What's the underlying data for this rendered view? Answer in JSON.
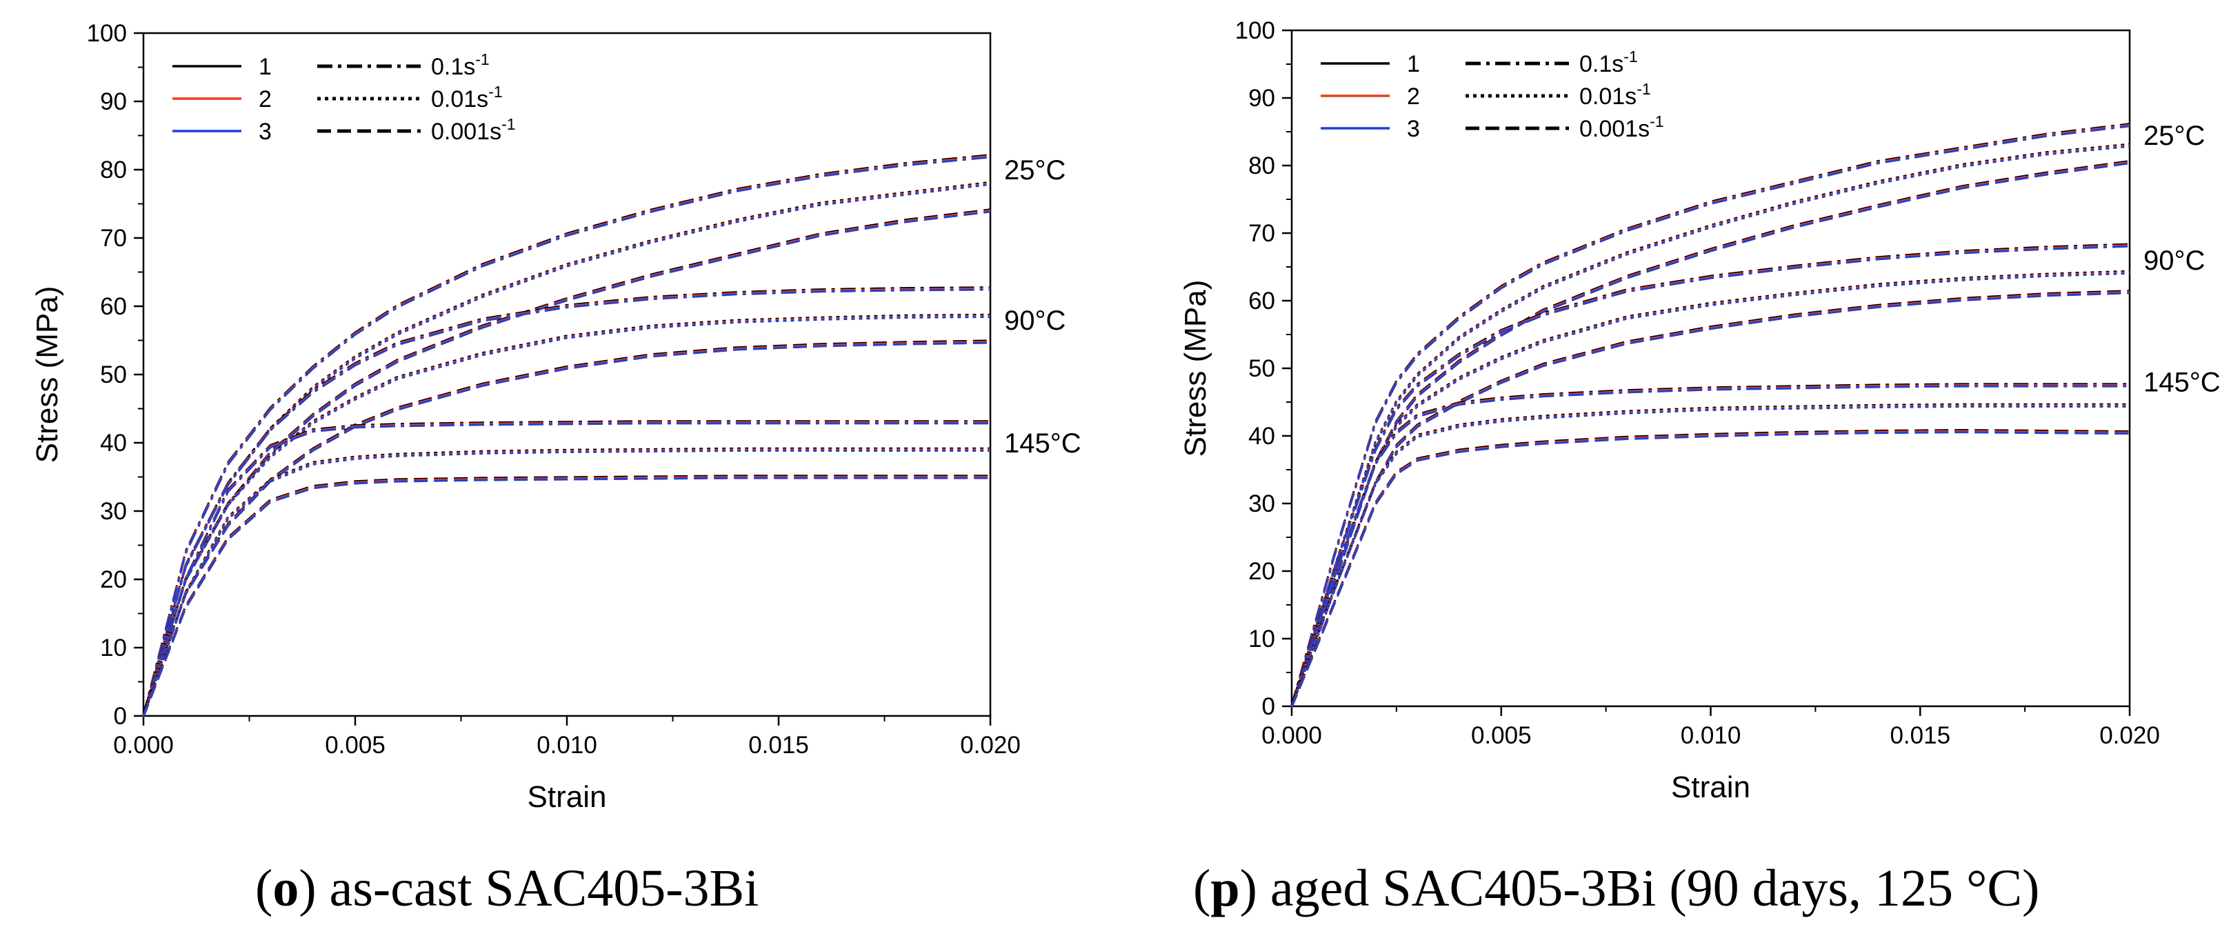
{
  "chart_data": [
    {
      "type": "line",
      "xlabel": "Strain",
      "ylabel": "Stress (MPa)",
      "xlim": [
        0,
        0.02
      ],
      "ylim": [
        0,
        100
      ],
      "xticks": [
        "0.000",
        "0.005",
        "0.010",
        "0.015",
        "0.020"
      ],
      "yticks": [
        "0",
        "10",
        "20",
        "30",
        "40",
        "50",
        "60",
        "70",
        "80",
        "90",
        "100"
      ],
      "caption_letter": "o",
      "caption_text": "as-cast SAC405-3Bi",
      "legend_position": "top-left",
      "legend_samples": [
        {
          "label": "1",
          "color": "#000000"
        },
        {
          "label": "2",
          "color": "#e8401c"
        },
        {
          "label": "3",
          "color": "#1f3fd8"
        }
      ],
      "legend_rates": [
        {
          "base": "0.1s",
          "exp": "-1",
          "style": "dashdot"
        },
        {
          "base": "0.01s",
          "exp": "-1",
          "style": "dot"
        },
        {
          "base": "0.001s",
          "exp": "-1",
          "style": "dash"
        }
      ],
      "temperature_labels": [
        {
          "text": "25°C",
          "y": 80
        },
        {
          "text": "90°C",
          "y": 58
        },
        {
          "text": "145°C",
          "y": 40
        }
      ],
      "series": [
        {
          "name": "25°C 0.1s-1",
          "style": "dashdot",
          "x": [
            0,
            0.001,
            0.002,
            0.003,
            0.004,
            0.005,
            0.006,
            0.008,
            0.01,
            0.012,
            0.014,
            0.016,
            0.018,
            0.02
          ],
          "y": [
            0,
            24,
            37,
            45,
            51,
            56,
            60,
            66,
            70.5,
            74,
            77,
            79.2,
            80.8,
            82
          ]
        },
        {
          "name": "25°C 0.01s-1",
          "style": "dot",
          "x": [
            0,
            0.001,
            0.002,
            0.003,
            0.004,
            0.005,
            0.006,
            0.008,
            0.01,
            0.012,
            0.014,
            0.016,
            0.018,
            0.02
          ],
          "y": [
            0,
            22,
            34,
            42,
            48,
            52.5,
            56,
            61.5,
            66,
            69.5,
            72.5,
            75,
            76.5,
            78
          ]
        },
        {
          "name": "25°C 0.001s-1",
          "style": "dash",
          "x": [
            0,
            0.001,
            0.002,
            0.003,
            0.004,
            0.005,
            0.006,
            0.008,
            0.01,
            0.012,
            0.014,
            0.016,
            0.018,
            0.02
          ],
          "y": [
            0,
            20,
            31,
            38.5,
            44,
            48.5,
            52,
            57,
            61,
            64.5,
            67.5,
            70.5,
            72.5,
            74
          ]
        },
        {
          "name": "90°C 0.1s-1",
          "style": "dashdot",
          "x": [
            0,
            0.001,
            0.002,
            0.003,
            0.004,
            0.005,
            0.006,
            0.008,
            0.01,
            0.012,
            0.014,
            0.016,
            0.018,
            0.02
          ],
          "y": [
            0,
            22,
            34,
            42,
            47.5,
            51.5,
            54.5,
            58,
            60,
            61.2,
            61.9,
            62.3,
            62.5,
            62.6
          ]
        },
        {
          "name": "90°C 0.01s-1",
          "style": "dot",
          "x": [
            0,
            0.001,
            0.002,
            0.003,
            0.004,
            0.005,
            0.006,
            0.008,
            0.01,
            0.012,
            0.014,
            0.016,
            0.018,
            0.02
          ],
          "y": [
            0,
            20,
            31,
            38,
            43,
            46.5,
            49.5,
            53,
            55.5,
            57,
            57.8,
            58.2,
            58.5,
            58.6
          ]
        },
        {
          "name": "90°C 0.001s-1",
          "style": "dash",
          "x": [
            0,
            0.001,
            0.002,
            0.003,
            0.004,
            0.005,
            0.006,
            0.008,
            0.01,
            0.012,
            0.014,
            0.016,
            0.018,
            0.02
          ],
          "y": [
            0,
            18,
            28,
            34.5,
            39,
            42.5,
            45,
            48.5,
            51,
            52.8,
            53.8,
            54.3,
            54.6,
            54.8
          ]
        },
        {
          "name": "145°C 0.1s-1",
          "style": "dashdot",
          "x": [
            0,
            0.001,
            0.002,
            0.003,
            0.004,
            0.005,
            0.006,
            0.008,
            0.01,
            0.012,
            0.014,
            0.016,
            0.018,
            0.02
          ],
          "y": [
            0,
            20,
            33,
            39.5,
            41.8,
            42.4,
            42.6,
            42.8,
            42.9,
            43,
            43,
            43,
            43,
            43
          ]
        },
        {
          "name": "145°C 0.01s-1",
          "style": "dot",
          "x": [
            0,
            0.001,
            0.002,
            0.003,
            0.004,
            0.005,
            0.006,
            0.008,
            0.01,
            0.012,
            0.014,
            0.016,
            0.018,
            0.02
          ],
          "y": [
            0,
            18,
            29,
            34.5,
            37,
            37.8,
            38.2,
            38.6,
            38.8,
            38.9,
            39,
            39,
            39,
            39
          ]
        },
        {
          "name": "145°C 0.001s-1",
          "style": "dash",
          "x": [
            0,
            0.001,
            0.002,
            0.003,
            0.004,
            0.005,
            0.006,
            0.008,
            0.01,
            0.012,
            0.014,
            0.016,
            0.018,
            0.02
          ],
          "y": [
            0,
            16,
            26,
            31.5,
            33.5,
            34.2,
            34.5,
            34.7,
            34.8,
            34.9,
            35,
            35,
            35,
            35
          ]
        }
      ]
    },
    {
      "type": "line",
      "xlabel": "Strain",
      "ylabel": "Stress (MPa)",
      "xlim": [
        0,
        0.02
      ],
      "ylim": [
        0,
        100
      ],
      "xticks": [
        "0.000",
        "0.005",
        "0.010",
        "0.015",
        "0.020"
      ],
      "yticks": [
        "0",
        "10",
        "20",
        "30",
        "40",
        "50",
        "60",
        "70",
        "80",
        "90",
        "100"
      ],
      "caption_letter": "p",
      "caption_text": "aged SAC405-3Bi (90 days, 125 °C)",
      "legend_position": "top-left",
      "legend_samples": [
        {
          "label": "1",
          "color": "#000000"
        },
        {
          "label": "2",
          "color": "#e8401c"
        },
        {
          "label": "3",
          "color": "#1f3fd8"
        }
      ],
      "legend_rates": [
        {
          "base": "0.1s",
          "exp": "-1",
          "style": "dashdot"
        },
        {
          "base": "0.01s",
          "exp": "-1",
          "style": "dot"
        },
        {
          "base": "0.001s",
          "exp": "-1",
          "style": "dash"
        }
      ],
      "temperature_labels": [
        {
          "text": "25°C",
          "y": 84.5
        },
        {
          "text": "90°C",
          "y": 66
        },
        {
          "text": "145°C",
          "y": 48
        }
      ],
      "series": [
        {
          "name": "25°C 0.1s-1",
          "style": "dashdot",
          "x": [
            0,
            0.001,
            0.002,
            0.0025,
            0.003,
            0.004,
            0.005,
            0.006,
            0.008,
            0.01,
            0.012,
            0.014,
            0.016,
            0.018,
            0.02
          ],
          "y": [
            0,
            22,
            42,
            48,
            52,
            57.5,
            62,
            65.5,
            70.5,
            74.5,
            77.5,
            80.5,
            82.5,
            84.5,
            86
          ]
        },
        {
          "name": "25°C 0.01s-1",
          "style": "dot",
          "x": [
            0,
            0.001,
            0.002,
            0.0025,
            0.003,
            0.004,
            0.005,
            0.006,
            0.008,
            0.01,
            0.012,
            0.014,
            0.016,
            0.018,
            0.02
          ],
          "y": [
            0,
            20,
            39,
            45,
            49,
            54.5,
            58.5,
            62,
            67,
            71,
            74.5,
            77.5,
            80,
            81.8,
            83
          ]
        },
        {
          "name": "25°C 0.001s-1",
          "style": "dash",
          "x": [
            0,
            0.001,
            0.002,
            0.0025,
            0.003,
            0.004,
            0.005,
            0.006,
            0.008,
            0.01,
            0.012,
            0.014,
            0.016,
            0.018,
            0.02
          ],
          "y": [
            0,
            18,
            36,
            42,
            46,
            51,
            55,
            58.5,
            63.5,
            67.5,
            71,
            74,
            76.8,
            78.8,
            80.5
          ]
        },
        {
          "name": "90°C 0.1s-1",
          "style": "dashdot",
          "x": [
            0,
            0.001,
            0.002,
            0.0025,
            0.003,
            0.004,
            0.005,
            0.006,
            0.008,
            0.01,
            0.012,
            0.014,
            0.016,
            0.018,
            0.02
          ],
          "y": [
            0,
            20,
            38,
            44,
            47.5,
            52,
            55.5,
            58,
            61.5,
            63.5,
            65,
            66.3,
            67.2,
            67.8,
            68.2
          ]
        },
        {
          "name": "90°C 0.01s-1",
          "style": "dot",
          "x": [
            0,
            0.001,
            0.002,
            0.0025,
            0.003,
            0.004,
            0.005,
            0.006,
            0.008,
            0.01,
            0.012,
            0.014,
            0.016,
            0.018,
            0.02
          ],
          "y": [
            0,
            19,
            36,
            41.5,
            44.5,
            48.5,
            51.5,
            54,
            57.5,
            59.5,
            61,
            62.3,
            63.2,
            63.8,
            64.2
          ]
        },
        {
          "name": "90°C 0.001s-1",
          "style": "dash",
          "x": [
            0,
            0.001,
            0.002,
            0.0025,
            0.003,
            0.004,
            0.005,
            0.006,
            0.008,
            0.01,
            0.012,
            0.014,
            0.016,
            0.018,
            0.02
          ],
          "y": [
            0,
            17,
            33,
            38.5,
            41.5,
            45,
            48,
            50.5,
            53.8,
            56,
            57.8,
            59.2,
            60.2,
            60.9,
            61.3
          ]
        },
        {
          "name": "145°C 0.1s-1",
          "style": "dashdot",
          "x": [
            0,
            0.001,
            0.002,
            0.0025,
            0.003,
            0.004,
            0.005,
            0.006,
            0.008,
            0.01,
            0.012,
            0.014,
            0.016,
            0.018,
            0.02
          ],
          "y": [
            0,
            19,
            36,
            40.5,
            43,
            44.8,
            45.5,
            46,
            46.6,
            47,
            47.2,
            47.4,
            47.5,
            47.5,
            47.5
          ]
        },
        {
          "name": "145°C 0.01s-1",
          "style": "dot",
          "x": [
            0,
            0.001,
            0.002,
            0.0025,
            0.003,
            0.004,
            0.005,
            0.006,
            0.008,
            0.01,
            0.012,
            0.014,
            0.016,
            0.018,
            0.02
          ],
          "y": [
            0,
            17,
            33,
            37.5,
            40,
            41.5,
            42.3,
            42.8,
            43.5,
            44,
            44.2,
            44.4,
            44.5,
            44.5,
            44.5
          ]
        },
        {
          "name": "145°C 0.001s-1",
          "style": "dash",
          "x": [
            0,
            0.001,
            0.002,
            0.0025,
            0.003,
            0.004,
            0.005,
            0.006,
            0.008,
            0.01,
            0.012,
            0.014,
            0.016,
            0.018,
            0.02
          ],
          "y": [
            0,
            15,
            30,
            34.5,
            36.5,
            37.8,
            38.5,
            39,
            39.7,
            40.1,
            40.4,
            40.6,
            40.7,
            40.6,
            40.5
          ]
        }
      ]
    }
  ]
}
